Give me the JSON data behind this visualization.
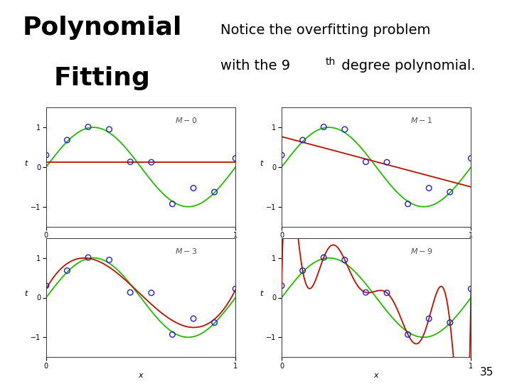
{
  "title_line1": "Polynomial",
  "title_line2": "Fitting",
  "notice_line1": "Notice the overfitting problem",
  "notice_line2": "with the 9",
  "notice_sup": "th",
  "notice_line2b": " degree polynomial.",
  "slide_number": "35",
  "background_color": "#ffffff",
  "title_fontsize": 26,
  "notice_fontsize": 14,
  "subplot_degrees": [
    0,
    1,
    3,
    9
  ],
  "subplot_labels": [
    "M - 0",
    "M - 1",
    "M - 3",
    "M - 9"
  ],
  "green_color": "#22bb00",
  "red_color": "#bb1100",
  "point_color": "#2222cc",
  "ylim": [
    -1.5,
    1.5
  ],
  "xlim": [
    0.0,
    1.0
  ]
}
